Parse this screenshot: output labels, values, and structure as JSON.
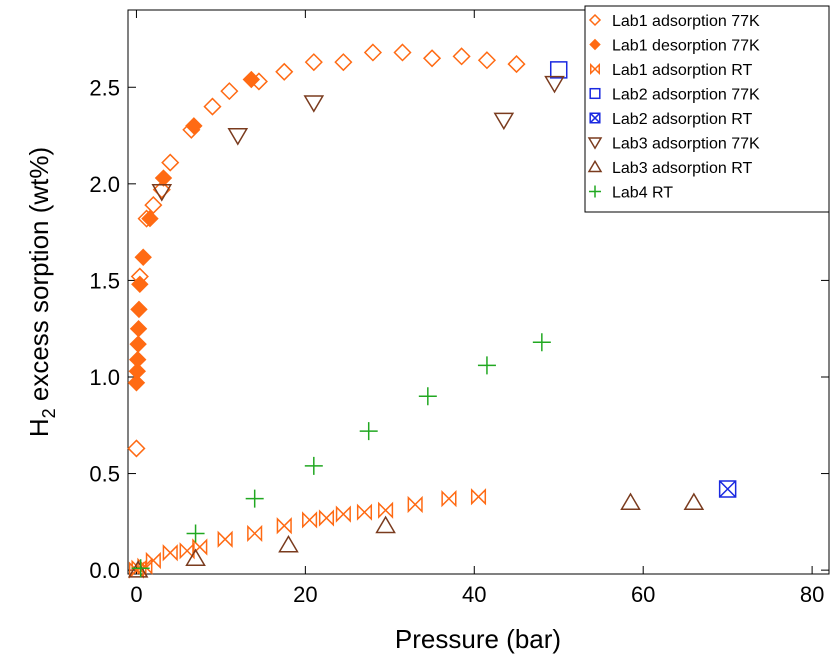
{
  "chart_data": {
    "type": "scatter",
    "xlabel": "Pressure (bar)",
    "ylabel_main": "H",
    "ylabel_sub": "2",
    "ylabel_rest": " excess sorption (wt%)",
    "xlim": [
      -1,
      82
    ],
    "ylim": [
      -0.02,
      2.9
    ],
    "x_ticks": [
      0,
      20,
      40,
      60,
      80
    ],
    "x_tick_labels": [
      "0",
      "20",
      "40",
      "60",
      "80"
    ],
    "y_ticks": [
      0.0,
      0.5,
      1.0,
      1.5,
      2.0,
      2.5
    ],
    "y_tick_labels": [
      "0.0",
      "0.5",
      "1.0",
      "1.5",
      "2.0",
      "2.5"
    ],
    "grid": false,
    "legend_position": "top-right",
    "series": [
      {
        "name": "Lab1 adsorption 77K",
        "marker": "diamond-open",
        "color": "#ff6a13",
        "points": [
          [
            0,
            0.63
          ],
          [
            0.4,
            1.52
          ],
          [
            1.2,
            1.82
          ],
          [
            2,
            1.89
          ],
          [
            3,
            1.97
          ],
          [
            4,
            2.11
          ],
          [
            6.5,
            2.28
          ],
          [
            9,
            2.4
          ],
          [
            11,
            2.48
          ],
          [
            14.5,
            2.53
          ],
          [
            17.5,
            2.58
          ],
          [
            21,
            2.63
          ],
          [
            24.5,
            2.63
          ],
          [
            28,
            2.68
          ],
          [
            31.5,
            2.68
          ],
          [
            35,
            2.65
          ],
          [
            38.5,
            2.66
          ],
          [
            41.5,
            2.64
          ],
          [
            45,
            2.62
          ]
        ]
      },
      {
        "name": "Lab1 desorption 77K",
        "marker": "diamond-filled",
        "color": "#ff6a13",
        "points": [
          [
            0,
            0.97
          ],
          [
            0.1,
            1.03
          ],
          [
            0.15,
            1.09
          ],
          [
            0.2,
            1.17
          ],
          [
            0.25,
            1.25
          ],
          [
            0.3,
            1.35
          ],
          [
            0.4,
            1.48
          ],
          [
            0.8,
            1.62
          ],
          [
            1.6,
            1.82
          ],
          [
            3.2,
            2.03
          ],
          [
            6.8,
            2.3
          ],
          [
            13.6,
            2.54
          ]
        ]
      },
      {
        "name": "Lab1 adsorption RT",
        "marker": "bowtie",
        "color": "#ff6a13",
        "points": [
          [
            0,
            0.0
          ],
          [
            0.3,
            0.01
          ],
          [
            1.0,
            0.02
          ],
          [
            2.0,
            0.05
          ],
          [
            4.0,
            0.09
          ],
          [
            6.0,
            0.1
          ],
          [
            7.5,
            0.12
          ],
          [
            10.5,
            0.16
          ],
          [
            14,
            0.19
          ],
          [
            17.5,
            0.23
          ],
          [
            20.5,
            0.26
          ],
          [
            22.5,
            0.27
          ],
          [
            24.5,
            0.29
          ],
          [
            27,
            0.3
          ],
          [
            29.5,
            0.31
          ],
          [
            33,
            0.34
          ],
          [
            37,
            0.37
          ],
          [
            40.5,
            0.38
          ]
        ]
      },
      {
        "name": "Lab2 adsorption 77K",
        "marker": "square-open",
        "color": "#1a29e0",
        "points": [
          [
            50,
            2.59
          ]
        ]
      },
      {
        "name": "Lab2 adsorption RT",
        "marker": "square-x",
        "color": "#1a29e0",
        "points": [
          [
            70,
            0.42
          ]
        ]
      },
      {
        "name": "Lab3 adsorption 77K",
        "marker": "triangle-down",
        "color": "#7a3b1e",
        "points": [
          [
            3,
            1.96
          ],
          [
            12,
            2.25
          ],
          [
            21,
            2.42
          ],
          [
            43.5,
            2.33
          ],
          [
            49.5,
            2.52
          ]
        ]
      },
      {
        "name": "Lab3 adsorption RT",
        "marker": "triangle-up",
        "color": "#7a3b1e",
        "points": [
          [
            0.2,
            0.0
          ],
          [
            7,
            0.06
          ],
          [
            18,
            0.13
          ],
          [
            29.5,
            0.23
          ],
          [
            58.5,
            0.35
          ],
          [
            66,
            0.35
          ]
        ]
      },
      {
        "name": "Lab4 RT",
        "marker": "plus",
        "color": "#21a821",
        "points": [
          [
            0.5,
            0.01
          ],
          [
            7,
            0.19
          ],
          [
            14,
            0.37
          ],
          [
            21,
            0.54
          ],
          [
            27.5,
            0.72
          ],
          [
            34.5,
            0.9
          ],
          [
            41.5,
            1.06
          ],
          [
            48,
            1.18
          ]
        ]
      }
    ]
  }
}
